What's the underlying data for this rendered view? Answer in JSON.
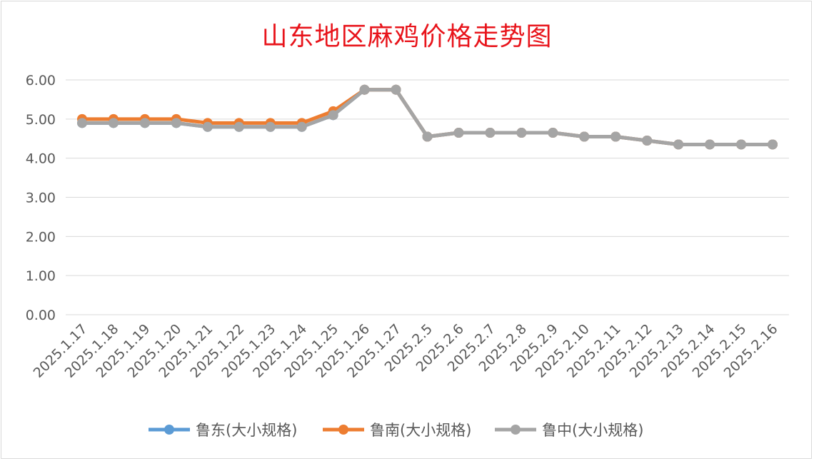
{
  "chart_data": {
    "type": "line",
    "title": "山东地区麻鸡价格走势图",
    "categories": [
      "2025.1.17",
      "2025.1.18",
      "2025.1.19",
      "2025.1.20",
      "2025.1.21",
      "2025.1.22",
      "2025.1.23",
      "2025.1.24",
      "2025.1.25",
      "2025.1.26",
      "2025.1.27",
      "2025.2.5",
      "2025.2.6",
      "2025.2.7",
      "2025.2.8",
      "2025.2.9",
      "2025.2.10",
      "2025.2.11",
      "2025.2.12",
      "2025.2.13",
      "2025.2.14",
      "2025.2.15",
      "2025.2.16"
    ],
    "y_ticks": [
      "0.00",
      "1.00",
      "2.00",
      "3.00",
      "4.00",
      "5.00",
      "6.00"
    ],
    "ylim": [
      0,
      6
    ],
    "grid": true,
    "legend_position": "bottom",
    "series": [
      {
        "name": "鲁东(大小规格)",
        "color": "#5b9bd5",
        "values": [
          4.9,
          4.9,
          4.9,
          4.9,
          4.8,
          4.8,
          4.8,
          4.8,
          5.1,
          5.75,
          5.75,
          4.55,
          4.65,
          4.65,
          4.65,
          4.65,
          4.55,
          4.55,
          4.45,
          4.35,
          4.35,
          4.35,
          4.35
        ]
      },
      {
        "name": "鲁南(大小规格)",
        "color": "#ed7d31",
        "values": [
          5.0,
          5.0,
          5.0,
          5.0,
          4.9,
          4.9,
          4.9,
          4.9,
          5.2,
          5.75,
          5.75,
          4.55,
          4.65,
          4.65,
          4.65,
          4.65,
          4.55,
          4.55,
          4.45,
          4.35,
          4.35,
          4.35,
          4.35
        ]
      },
      {
        "name": "鲁中(大小规格)",
        "color": "#a5a5a5",
        "values": [
          4.9,
          4.9,
          4.9,
          4.9,
          4.8,
          4.8,
          4.8,
          4.8,
          5.1,
          5.75,
          5.75,
          4.55,
          4.65,
          4.65,
          4.65,
          4.65,
          4.55,
          4.55,
          4.45,
          4.35,
          4.35,
          4.35,
          4.35
        ]
      }
    ]
  }
}
